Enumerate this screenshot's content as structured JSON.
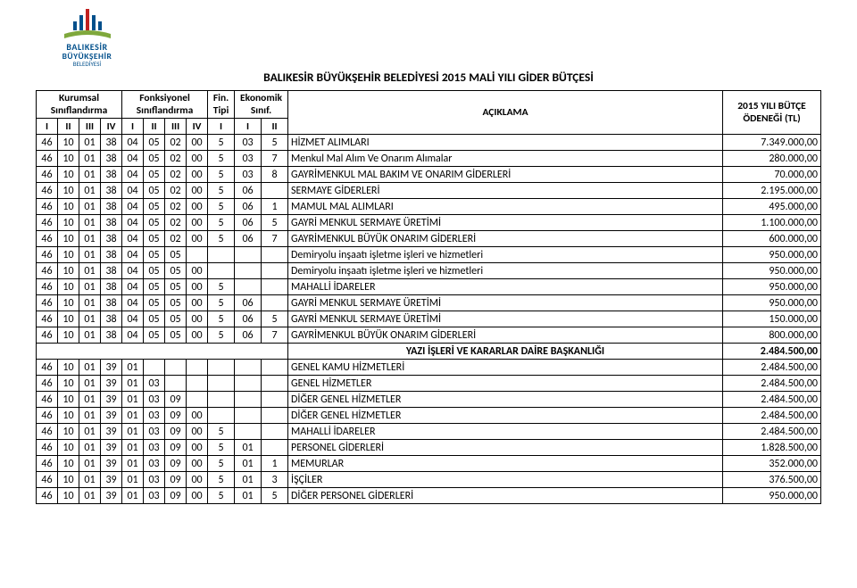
{
  "logo": {
    "line1": "BALIKESİR",
    "line2": "BÜYÜKŞEHİR",
    "line3": "BELEDİYESİ",
    "colors": {
      "blue": "#004f8b",
      "red": "#c02020",
      "green": "#7fa83c"
    }
  },
  "title": "BALIKESİR BÜYÜKŞEHİR BELEDİYESİ 2015 MALİ YILI GİDER BÜTÇESİ",
  "headerGroups": [
    "Kurumsal Sınıflandırma",
    "Fonksiyonel Sınıflandırma",
    "Fin. Tipi",
    "Ekonomik Sınıf."
  ],
  "headerSub": [
    "I",
    "II",
    "III",
    "IV",
    "I",
    "II",
    "III",
    "IV",
    "I",
    "I",
    "II"
  ],
  "descHeader": "AÇIKLAMA",
  "amountHeader": "2015 YILI BÜTÇE ÖDENEĞİ (TL)",
  "rows": [
    {
      "c": [
        "46",
        "10",
        "01",
        "38",
        "04",
        "05",
        "02",
        "00",
        "5",
        "03",
        "5"
      ],
      "d": "HİZMET ALIMLARI",
      "a": "7.349.000,00"
    },
    {
      "c": [
        "46",
        "10",
        "01",
        "38",
        "04",
        "05",
        "02",
        "00",
        "5",
        "03",
        "7"
      ],
      "d": "Menkul Mal Alım Ve Onarım Alımalar",
      "a": "280.000,00"
    },
    {
      "c": [
        "46",
        "10",
        "01",
        "38",
        "04",
        "05",
        "02",
        "00",
        "5",
        "03",
        "8"
      ],
      "d": "GAYRİMENKUL MAL BAKIM VE ONARIM GİDERLERİ",
      "a": "70.000,00"
    },
    {
      "c": [
        "46",
        "10",
        "01",
        "38",
        "04",
        "05",
        "02",
        "00",
        "5",
        "06",
        ""
      ],
      "d": "SERMAYE GİDERLERİ",
      "a": "2.195.000,00"
    },
    {
      "c": [
        "46",
        "10",
        "01",
        "38",
        "04",
        "05",
        "02",
        "00",
        "5",
        "06",
        "1"
      ],
      "d": "MAMUL MAL ALIMLARI",
      "a": "495.000,00"
    },
    {
      "c": [
        "46",
        "10",
        "01",
        "38",
        "04",
        "05",
        "02",
        "00",
        "5",
        "06",
        "5"
      ],
      "d": "GAYRİ MENKUL SERMAYE ÜRETİMİ",
      "a": "1.100.000,00"
    },
    {
      "c": [
        "46",
        "10",
        "01",
        "38",
        "04",
        "05",
        "02",
        "00",
        "5",
        "06",
        "7"
      ],
      "d": "GAYRİMENKUL BÜYÜK ONARIM GİDERLERİ",
      "a": "600.000,00"
    },
    {
      "c": [
        "46",
        "10",
        "01",
        "38",
        "04",
        "05",
        "05",
        "",
        "",
        "",
        ""
      ],
      "d": "Demiryolu inşaatı işletme işleri ve hizmetleri",
      "a": "950.000,00"
    },
    {
      "c": [
        "46",
        "10",
        "01",
        "38",
        "04",
        "05",
        "05",
        "00",
        "",
        "",
        ""
      ],
      "d": "Demiryolu inşaatı işletme işleri ve hizmetleri",
      "a": "950.000,00"
    },
    {
      "c": [
        "46",
        "10",
        "01",
        "38",
        "04",
        "05",
        "05",
        "00",
        "5",
        "",
        ""
      ],
      "d": "MAHALLİ İDARELER",
      "a": "950.000,00"
    },
    {
      "c": [
        "46",
        "10",
        "01",
        "38",
        "04",
        "05",
        "05",
        "00",
        "5",
        "06",
        ""
      ],
      "d": "GAYRİ MENKUL SERMAYE ÜRETİMİ",
      "a": "950.000,00"
    },
    {
      "c": [
        "46",
        "10",
        "01",
        "38",
        "04",
        "05",
        "05",
        "00",
        "5",
        "06",
        "5"
      ],
      "d": "GAYRİ MENKUL SERMAYE ÜRETİMİ",
      "a": "150.000,00"
    },
    {
      "c": [
        "46",
        "10",
        "01",
        "38",
        "04",
        "05",
        "05",
        "00",
        "5",
        "06",
        "7"
      ],
      "d": "GAYRİMENKUL BÜYÜK ONARIM GİDERLERİ",
      "a": "800.000,00"
    },
    {
      "section": true,
      "d": "YAZI İŞLERİ VE KARARLAR DAİRE BAŞKANLIĞI",
      "a": "2.484.500,00"
    },
    {
      "c": [
        "46",
        "10",
        "01",
        "39",
        "01",
        "",
        "",
        "",
        "",
        "",
        ""
      ],
      "d": "GENEL KAMU HİZMETLERİ",
      "a": "2.484.500,00"
    },
    {
      "c": [
        "46",
        "10",
        "01",
        "39",
        "01",
        "03",
        "",
        "",
        "",
        "",
        ""
      ],
      "d": "GENEL HİZMETLER",
      "a": "2.484.500,00"
    },
    {
      "c": [
        "46",
        "10",
        "01",
        "39",
        "01",
        "03",
        "09",
        "",
        "",
        "",
        ""
      ],
      "d": "DİĞER GENEL HİZMETLER",
      "a": "2.484.500,00"
    },
    {
      "c": [
        "46",
        "10",
        "01",
        "39",
        "01",
        "03",
        "09",
        "00",
        "",
        "",
        ""
      ],
      "d": "DİĞER GENEL HİZMETLER",
      "a": "2.484.500,00"
    },
    {
      "c": [
        "46",
        "10",
        "01",
        "39",
        "01",
        "03",
        "09",
        "00",
        "5",
        "",
        ""
      ],
      "d": "MAHALLİ İDARELER",
      "a": "2.484.500,00"
    },
    {
      "c": [
        "46",
        "10",
        "01",
        "39",
        "01",
        "03",
        "09",
        "00",
        "5",
        "01",
        ""
      ],
      "d": "PERSONEL GİDERLERİ",
      "a": "1.828.500,00"
    },
    {
      "c": [
        "46",
        "10",
        "01",
        "39",
        "01",
        "03",
        "09",
        "00",
        "5",
        "01",
        "1"
      ],
      "d": "MEMURLAR",
      "a": "352.000,00"
    },
    {
      "c": [
        "46",
        "10",
        "01",
        "39",
        "01",
        "03",
        "09",
        "00",
        "5",
        "01",
        "3"
      ],
      "d": "İŞÇİLER",
      "a": "376.500,00"
    },
    {
      "c": [
        "46",
        "10",
        "01",
        "39",
        "01",
        "03",
        "09",
        "00",
        "5",
        "01",
        "5"
      ],
      "d": "DİĞER PERSONEL GİDERLERİ",
      "a": "950.000,00"
    }
  ]
}
